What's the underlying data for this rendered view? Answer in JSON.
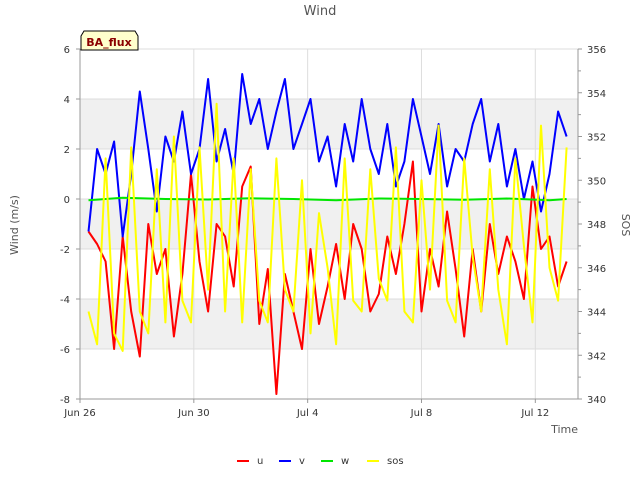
{
  "chart_data": {
    "type": "line",
    "title": "Wind",
    "xlabel": "Time",
    "ylabel": "Wind (m/s)",
    "y2label": "SOS",
    "site_label": "BA_flux",
    "x_range_days": [
      0,
      17.5
    ],
    "x_ticks": [
      {
        "day": 0,
        "label": "Jun 26"
      },
      {
        "day": 4,
        "label": "Jun 30"
      },
      {
        "day": 8,
        "label": "Jul 4"
      },
      {
        "day": 12,
        "label": "Jul 8"
      },
      {
        "day": 16,
        "label": "Jul 12"
      }
    ],
    "ylim": [
      -8,
      6
    ],
    "y_ticks": [
      -8,
      -6,
      -4,
      -2,
      0,
      2,
      4,
      6
    ],
    "y2lim": [
      340,
      356
    ],
    "y2_ticks": [
      340,
      342,
      344,
      346,
      348,
      350,
      352,
      354,
      356
    ],
    "legend_position": "bottom-center",
    "series": [
      {
        "name": "u",
        "color": "#ff0000",
        "axis": "left",
        "x": [
          0.3,
          0.6,
          0.9,
          1.2,
          1.5,
          1.8,
          2.1,
          2.4,
          2.7,
          3.0,
          3.3,
          3.6,
          3.9,
          4.2,
          4.5,
          4.8,
          5.1,
          5.4,
          5.7,
          6.0,
          6.3,
          6.6,
          6.9,
          7.2,
          7.5,
          7.8,
          8.1,
          8.4,
          8.7,
          9.0,
          9.3,
          9.6,
          9.9,
          10.2,
          10.5,
          10.8,
          11.1,
          11.4,
          11.7,
          12.0,
          12.3,
          12.6,
          12.9,
          13.2,
          13.5,
          13.8,
          14.1,
          14.4,
          14.7,
          15.0,
          15.3,
          15.6,
          15.9,
          16.2,
          16.5,
          16.8,
          17.1
        ],
        "values": [
          -1.3,
          -1.8,
          -2.5,
          -6.0,
          -1.5,
          -4.5,
          -6.3,
          -1.0,
          -3.0,
          -2.0,
          -5.5,
          -3.0,
          1.0,
          -2.5,
          -4.5,
          -1.0,
          -1.5,
          -3.5,
          0.5,
          1.3,
          -5.0,
          -2.8,
          -7.8,
          -3.0,
          -4.5,
          -6.0,
          -2.0,
          -5.0,
          -3.5,
          -1.8,
          -4.0,
          -1.0,
          -2.0,
          -4.5,
          -3.8,
          -1.5,
          -3.0,
          -1.0,
          1.5,
          -4.5,
          -2.0,
          -3.5,
          -0.5,
          -2.8,
          -5.5,
          -2.0,
          -4.5,
          -1.0,
          -3.0,
          -1.5,
          -2.5,
          -4.0,
          0.5,
          -2.0,
          -1.5,
          -3.5,
          -2.5
        ]
      },
      {
        "name": "v",
        "color": "#0000ff",
        "axis": "left",
        "x": [
          0.3,
          0.6,
          0.9,
          1.2,
          1.5,
          1.8,
          2.1,
          2.4,
          2.7,
          3.0,
          3.3,
          3.6,
          3.9,
          4.2,
          4.5,
          4.8,
          5.1,
          5.4,
          5.7,
          6.0,
          6.3,
          6.6,
          6.9,
          7.2,
          7.5,
          7.8,
          8.1,
          8.4,
          8.7,
          9.0,
          9.3,
          9.6,
          9.9,
          10.2,
          10.5,
          10.8,
          11.1,
          11.4,
          11.7,
          12.0,
          12.3,
          12.6,
          12.9,
          13.2,
          13.5,
          13.8,
          14.1,
          14.4,
          14.7,
          15.0,
          15.3,
          15.6,
          15.9,
          16.2,
          16.5,
          16.8,
          17.1
        ],
        "values": [
          -1.3,
          2.0,
          1.0,
          2.3,
          -1.5,
          1.0,
          4.3,
          2.0,
          -0.5,
          2.5,
          1.5,
          3.5,
          1.0,
          2.0,
          4.8,
          1.5,
          2.8,
          1.0,
          5.0,
          3.0,
          4.0,
          2.0,
          3.5,
          4.8,
          2.0,
          3.0,
          4.0,
          1.5,
          2.5,
          0.5,
          3.0,
          1.5,
          4.0,
          2.0,
          1.0,
          3.0,
          0.5,
          1.5,
          4.0,
          2.5,
          1.0,
          3.0,
          0.5,
          2.0,
          1.5,
          3.0,
          4.0,
          1.5,
          3.0,
          0.5,
          2.0,
          0.0,
          1.5,
          -0.5,
          1.0,
          3.5,
          2.5
        ]
      },
      {
        "name": "w",
        "color": "#00e600",
        "axis": "left",
        "x": [
          0.3,
          1.5,
          3.0,
          4.5,
          6.0,
          7.5,
          9.0,
          10.5,
          12.0,
          13.5,
          15.0,
          16.5,
          17.1
        ],
        "values": [
          -0.05,
          0.05,
          0.0,
          -0.02,
          0.03,
          0.0,
          -0.05,
          0.02,
          0.0,
          -0.03,
          0.02,
          -0.05,
          0.0
        ]
      },
      {
        "name": "sos",
        "color": "#ffff00",
        "axis": "right",
        "x": [
          0.3,
          0.6,
          0.9,
          1.2,
          1.5,
          1.8,
          2.1,
          2.4,
          2.7,
          3.0,
          3.3,
          3.6,
          3.9,
          4.2,
          4.5,
          4.8,
          5.1,
          5.4,
          5.7,
          6.0,
          6.3,
          6.6,
          6.9,
          7.2,
          7.5,
          7.8,
          8.1,
          8.4,
          8.7,
          9.0,
          9.3,
          9.6,
          9.9,
          10.2,
          10.5,
          10.8,
          11.1,
          11.4,
          11.7,
          12.0,
          12.3,
          12.6,
          12.9,
          13.2,
          13.5,
          13.8,
          14.1,
          14.4,
          14.7,
          15.0,
          15.3,
          15.6,
          15.9,
          16.2,
          16.5,
          16.8,
          17.1
        ],
        "values": [
          344.0,
          342.5,
          351.0,
          343.0,
          342.2,
          351.5,
          344.0,
          343.0,
          350.5,
          343.5,
          352.0,
          344.5,
          343.5,
          351.5,
          345.0,
          353.5,
          344.0,
          351.0,
          343.5,
          350.5,
          344.5,
          343.5,
          351.0,
          345.0,
          344.0,
          350.0,
          343.0,
          348.5,
          346.0,
          342.5,
          351.0,
          344.5,
          344.0,
          350.5,
          345.5,
          344.5,
          351.5,
          344.0,
          343.5,
          350.0,
          345.0,
          352.5,
          344.5,
          343.5,
          351.0,
          346.5,
          344.0,
          350.5,
          345.0,
          342.5,
          351.0,
          347.0,
          343.5,
          352.5,
          346.0,
          344.5,
          351.5
        ]
      }
    ]
  }
}
